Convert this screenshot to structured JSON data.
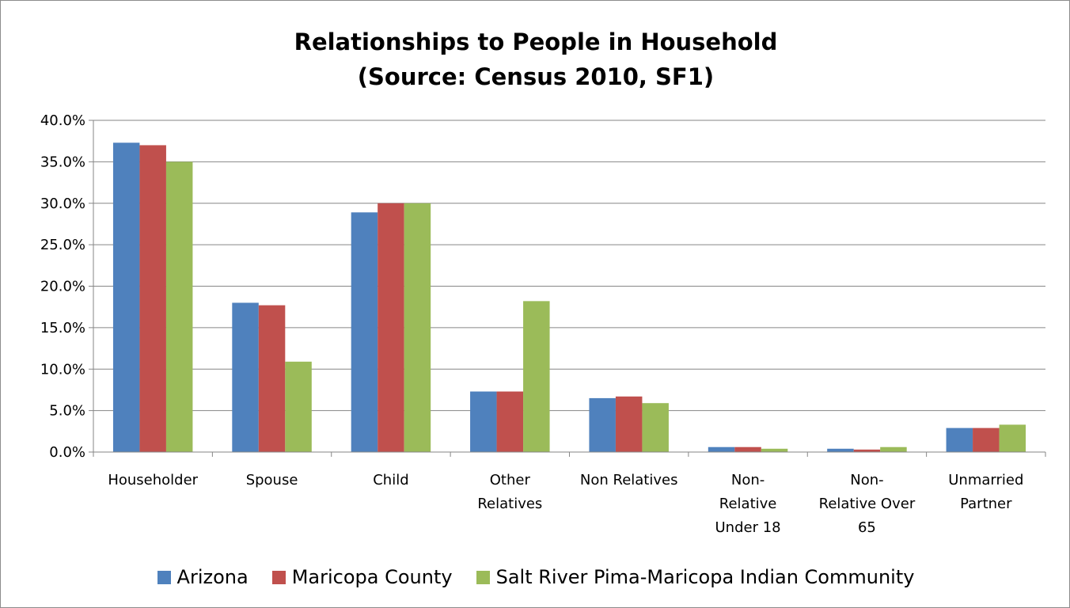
{
  "chart_data": {
    "type": "bar",
    "title": [
      "Relationships to People in Household",
      "(Source: Census 2010, SF1)"
    ],
    "categories": [
      [
        "Householder"
      ],
      [
        "Spouse"
      ],
      [
        "Child"
      ],
      [
        "Other",
        "Relatives"
      ],
      [
        "Non Relatives"
      ],
      [
        "Non-",
        "Relative",
        "Under 18"
      ],
      [
        "Non-",
        "Relative Over",
        "65"
      ],
      [
        "Unmarried",
        "Partner"
      ]
    ],
    "series": [
      {
        "name": "Arizona",
        "color": "#4F81BD",
        "values": [
          37.3,
          18.0,
          28.9,
          7.3,
          6.5,
          0.6,
          0.4,
          2.9
        ]
      },
      {
        "name": "Maricopa County",
        "color": "#C0504D",
        "values": [
          37.0,
          17.7,
          30.0,
          7.3,
          6.7,
          0.6,
          0.3,
          2.9
        ]
      },
      {
        "name": "Salt River Pima-Maricopa Indian Community",
        "color": "#9BBB59",
        "values": [
          35.0,
          10.9,
          30.0,
          18.2,
          5.9,
          0.4,
          0.6,
          3.3
        ]
      }
    ],
    "y_ticks": [
      "0.0%",
      "5.0%",
      "10.0%",
      "15.0%",
      "20.0%",
      "25.0%",
      "30.0%",
      "35.0%",
      "40.0%"
    ],
    "ylim": [
      0,
      40
    ],
    "grid": true,
    "legend_position": "bottom"
  }
}
